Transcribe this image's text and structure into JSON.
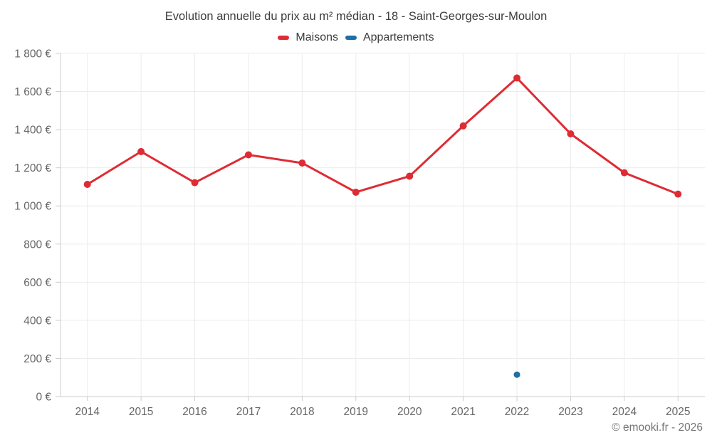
{
  "chart_data": {
    "type": "line",
    "title": "Evolution annuelle du prix au m² médian - 18 - Saint-Georges-sur-Moulon",
    "categories": [
      "2014",
      "2015",
      "2016",
      "2017",
      "2018",
      "2019",
      "2020",
      "2021",
      "2022",
      "2023",
      "2024",
      "2025"
    ],
    "series": [
      {
        "name": "Maisons",
        "color": "#de2c34",
        "marker_radius": 5,
        "values": [
          1113,
          1285,
          1122,
          1268,
          1225,
          1072,
          1156,
          1420,
          1671,
          1378,
          1174,
          1062
        ]
      },
      {
        "name": "Appartements",
        "color": "#1e6fa5",
        "marker_radius": 4.5,
        "values": [
          null,
          null,
          null,
          null,
          null,
          null,
          null,
          null,
          115,
          null,
          null,
          null
        ]
      }
    ],
    "ylim": [
      0,
      1800
    ],
    "y_tick_step": 200,
    "y_tick_labels": [
      "0 €",
      "200 €",
      "400 €",
      "600 €",
      "800 €",
      "1 000 €",
      "1 200 €",
      "1 400 €",
      "1 600 €",
      "1 800 €"
    ],
    "grid": true,
    "legend_position": "top",
    "xlabel": "",
    "ylabel": ""
  },
  "legend": {
    "items": [
      {
        "label": "Maisons",
        "color": "#de2c34"
      },
      {
        "label": "Appartements",
        "color": "#1e6fa5"
      }
    ]
  },
  "footer": {
    "copyright": "© emooki.fr - 2026"
  },
  "colors": {
    "grid": "#ececec",
    "axis": "#cccccc",
    "axis_text": "#666666",
    "title_text": "#3c3c3c"
  }
}
